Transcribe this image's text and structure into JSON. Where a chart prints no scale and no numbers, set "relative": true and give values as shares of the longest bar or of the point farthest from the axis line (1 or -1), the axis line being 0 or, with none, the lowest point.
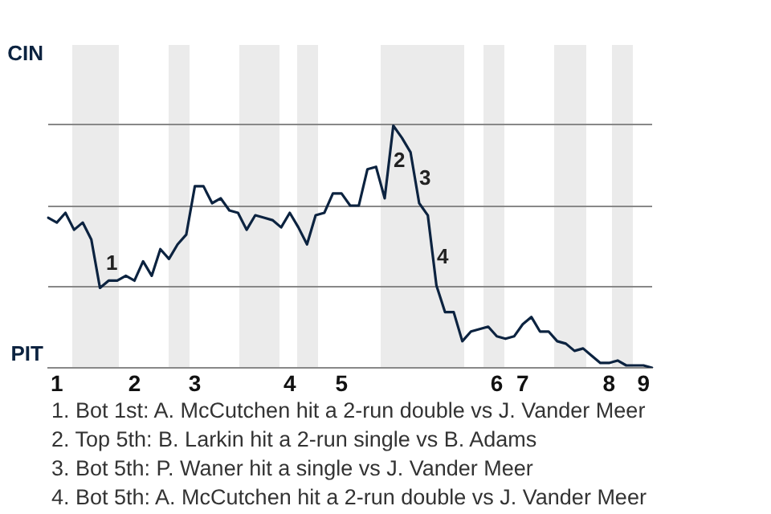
{
  "chart_data": {
    "type": "line",
    "relative": true,
    "ref_lines": [
      {
        "axis": "y",
        "value": 0.34,
        "color": "#888888"
      },
      {
        "axis": "y",
        "value": 0.67,
        "color": "#888888"
      },
      {
        "axis": "y",
        "value": 1.01,
        "color": "#888888"
      }
    ],
    "categories": [
      null,
      "1",
      null,
      null,
      null,
      null,
      null,
      null,
      null,
      null,
      "2",
      null,
      null,
      null,
      null,
      null,
      null,
      "3",
      null,
      null,
      null,
      null,
      null,
      null,
      null,
      null,
      null,
      null,
      "4",
      null,
      null,
      null,
      null,
      null,
      "5",
      null,
      null,
      null,
      null,
      null,
      null,
      null,
      null,
      null,
      null,
      null,
      null,
      null,
      null,
      null,
      null,
      null,
      "6",
      null,
      null,
      "7",
      null,
      null,
      null,
      null,
      null,
      null,
      null,
      null,
      null,
      "8",
      null,
      null,
      null,
      "9",
      null
    ],
    "series": [
      {
        "color": "#0c2340",
        "values": [
          0.62,
          0.6,
          0.64,
          0.57,
          0.6,
          0.53,
          0.33,
          0.36,
          0.36,
          0.38,
          0.36,
          0.44,
          0.38,
          0.49,
          0.45,
          0.51,
          0.55,
          0.75,
          0.75,
          0.68,
          0.7,
          0.65,
          0.64,
          0.57,
          0.63,
          0.62,
          0.61,
          0.58,
          0.64,
          0.58,
          0.51,
          0.63,
          0.64,
          0.72,
          0.72,
          0.67,
          0.67,
          0.82,
          0.83,
          0.7,
          1,
          0.95,
          0.89,
          0.68,
          0.63,
          0.34,
          0.23,
          0.23,
          0.11,
          0.15,
          0.16,
          0.17,
          0.13,
          0.12,
          0.13,
          0.18,
          0.21,
          0.15,
          0.15,
          0.11,
          0.1,
          0.07,
          0.08,
          0.05,
          0.02,
          0.02,
          0.03,
          0.01,
          0.01,
          0.01,
          0
        ]
      }
    ],
    "annotations": [
      "CIN",
      "PIT",
      "1",
      "2",
      "3",
      "4",
      "1. Bot 1st: A. McCutchen hit a 2-run double vs J. Vander Meer",
      "2. Top 5th: B. Larkin hit a 2-run single vs B. Adams",
      "3. Bot 5th: P. Waner hit a single vs J. Vander Meer",
      "4. Bot 5th: A. McCutchen hit a 2-run double vs J. Vander Meer"
    ]
  }
}
